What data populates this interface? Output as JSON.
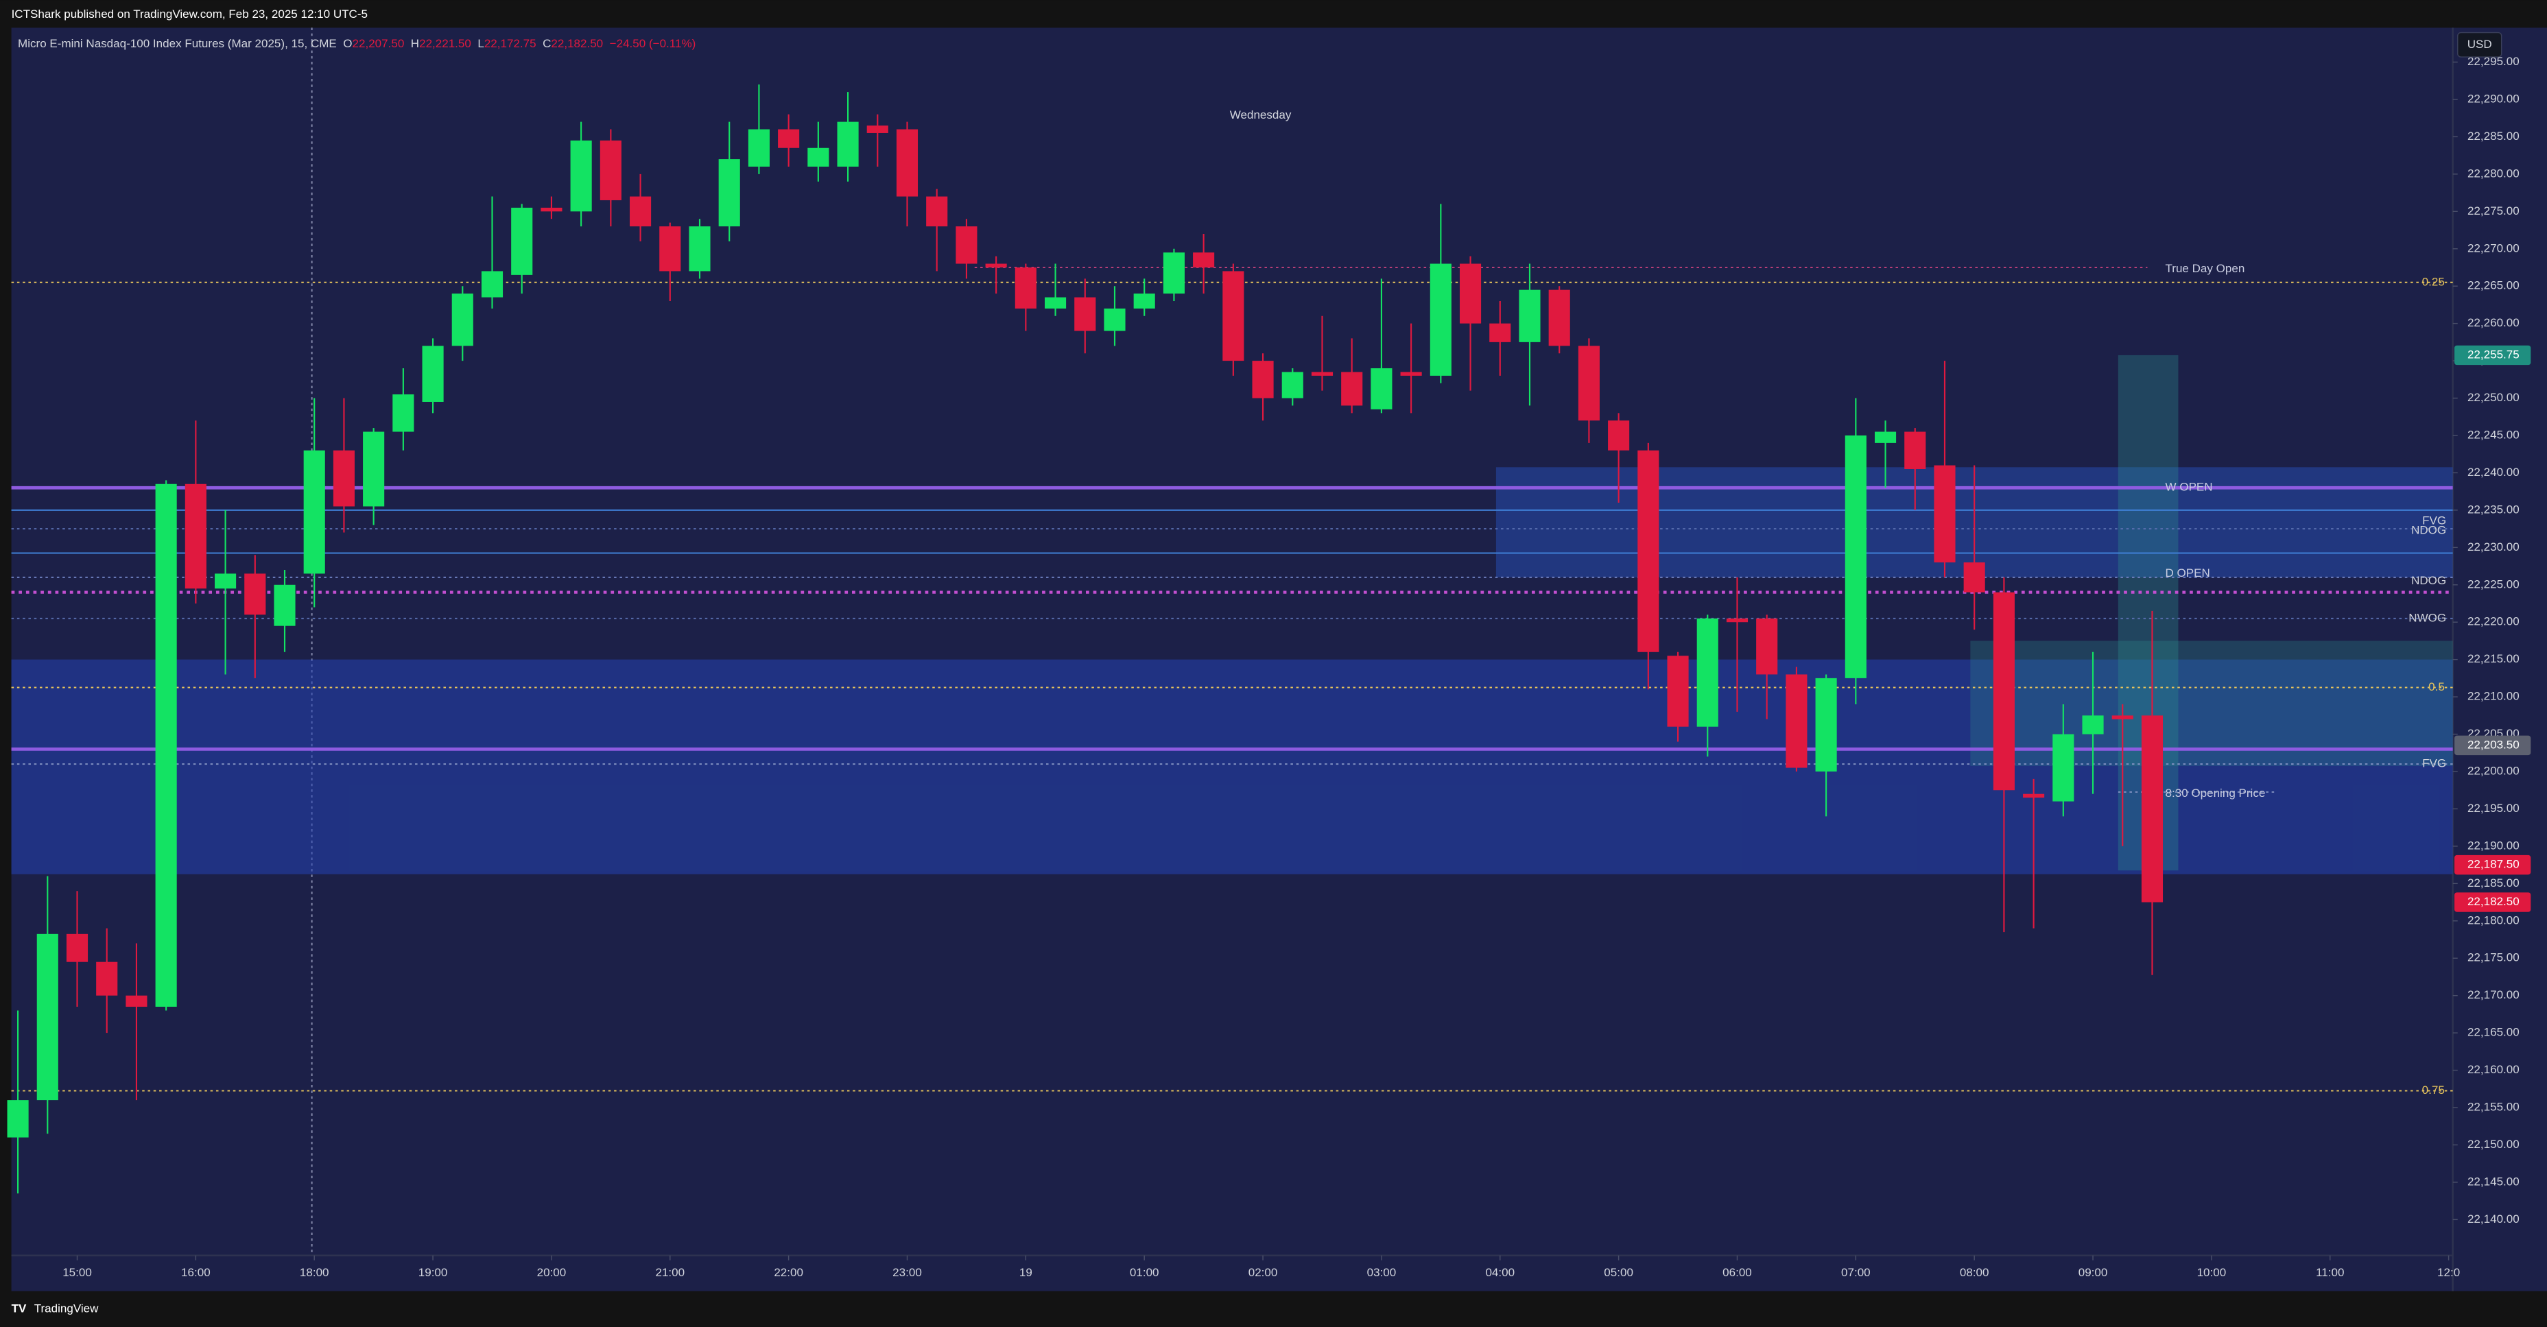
{
  "header": "ICTShark published on TradingView.com, Feb 23, 2025 12:10 UTC-5",
  "footer": "TradingView",
  "currency": "USD",
  "chart_data": {
    "type": "candlestick",
    "title": "Micro E-mini Nasdaq-100 Index Futures (Mar 2025), 15, CME",
    "legend": [
      {
        "key": "O",
        "text": "22,207.50"
      },
      {
        "key": "H",
        "text": "22,221.50"
      },
      {
        "key": "L",
        "text": "22,172.75"
      },
      {
        "key": "C",
        "text": "22,182.50"
      }
    ],
    "change": "−24.50 (−0.11%)",
    "day_label": "Wednesday",
    "up_color": "#13e363",
    "down_color": "#e0193f",
    "open": [
      22151,
      22156,
      22178.25,
      22174.5,
      22170,
      22168.5,
      22238.5,
      22224.5,
      22226.5,
      22219.5,
      22226.5,
      22243,
      22235.5,
      22245.5,
      22249.5,
      22257,
      22263.5,
      22266.5,
      22275.5,
      22275,
      22284.5,
      22277,
      22273,
      22267,
      22273,
      22281,
      22286,
      22281,
      22281,
      22286.5,
      22286,
      22277,
      22273,
      22268,
      22267.5,
      22262,
      22263.5,
      22259,
      22262,
      22264,
      22269.5,
      22267,
      22255,
      22250,
      22253.5,
      22253.5,
      22248.5,
      22253.5,
      22253,
      22268,
      22260,
      22257.5,
      22264.5,
      22257,
      22247,
      22243,
      22215.5,
      22206,
      22220.5,
      22220.5,
      22213,
      22200,
      22212.5,
      22244,
      22245.5,
      22241,
      22228,
      22224,
      22197,
      22196,
      22205,
      22207.5,
      22207.5
    ],
    "high": [
      22168,
      22186,
      22184,
      22179,
      22177,
      22239,
      22247,
      22235,
      22229,
      22227,
      22250,
      22250,
      22246,
      22254,
      22258,
      22265,
      22277,
      22276,
      22277,
      22287,
      22286,
      22280,
      22273.5,
      22274,
      22287,
      22292,
      22288,
      22287,
      22291,
      22288,
      22287,
      22278,
      22274,
      22269,
      22268,
      22268,
      22266,
      22265,
      22266,
      22270,
      22272,
      22268,
      22256,
      22254,
      22261,
      22258,
      22266,
      22260,
      22276,
      22269,
      22263,
      22268,
      22265,
      22258,
      22248,
      22244,
      22216,
      22221,
      22226,
      22221,
      22214,
      22213,
      22250,
      22247,
      22246,
      22255,
      22241,
      22226,
      22199,
      22209,
      22216,
      22209,
      22221.5
    ],
    "low": [
      22143.5,
      22151.5,
      22168.5,
      22165,
      22156,
      22168,
      22222.5,
      22213,
      22212.5,
      22216,
      22222,
      22232,
      22233,
      22243,
      22248,
      22255,
      22262,
      22264,
      22274,
      22273,
      22273,
      22271,
      22263,
      22266,
      22271,
      22280,
      22281,
      22279,
      22279,
      22281,
      22273,
      22267,
      22266,
      22264,
      22259,
      22261,
      22256,
      22257,
      22261,
      22263,
      22264,
      22253,
      22247,
      22249,
      22251,
      22248,
      22248,
      22248,
      22252,
      22251,
      22253,
      22249,
      22256,
      22244,
      22236,
      22211,
      22204,
      22202,
      22208,
      22207,
      22200,
      22194,
      22209,
      22238,
      22235,
      22226,
      22219,
      22178.5,
      22179,
      22194,
      22197,
      22190,
      22172.75
    ],
    "close": [
      22156,
      22178.25,
      22174.5,
      22170,
      22168.5,
      22238.5,
      22224.5,
      22226.5,
      22221,
      22225,
      22243,
      22235.5,
      22245.5,
      22250.5,
      22257,
      22264,
      22267,
      22275.5,
      22275,
      22284.5,
      22276.5,
      22273,
      22267,
      22273,
      22282,
      22286,
      22283.5,
      22283.5,
      22287,
      22285.5,
      22277,
      22273,
      22268,
      22267.5,
      22262,
      22263.5,
      22259,
      22262,
      22264,
      22269.5,
      22267.5,
      22255,
      22250,
      22253.5,
      22253,
      22249,
      22254,
      22253,
      22268,
      22260,
      22257.5,
      22264.5,
      22257,
      22247,
      22243,
      22216,
      22206,
      22220.5,
      22220,
      22213,
      22200.5,
      22212.5,
      22245,
      22245.5,
      22240.5,
      22228,
      22224,
      22197.5,
      22196.5,
      22205,
      22207.5,
      22207,
      22182.5
    ],
    "xlim": [
      -0.22,
      82.14
    ],
    "xticks": [
      {
        "value": 2,
        "label": "15:00"
      },
      {
        "value": 6,
        "label": "16:00"
      },
      {
        "value": 10,
        "label": "18:00"
      },
      {
        "value": 14,
        "label": "19:00"
      },
      {
        "value": 18,
        "label": "20:00"
      },
      {
        "value": 22,
        "label": "21:00"
      },
      {
        "value": 26,
        "label": "22:00"
      },
      {
        "value": 30,
        "label": "23:00"
      },
      {
        "value": 34,
        "label": "19"
      },
      {
        "value": 38,
        "label": "01:00"
      },
      {
        "value": 42,
        "label": "02:00"
      },
      {
        "value": 46,
        "label": "03:00"
      },
      {
        "value": 50,
        "label": "04:00"
      },
      {
        "value": 54,
        "label": "05:00"
      },
      {
        "value": 58,
        "label": "06:00"
      },
      {
        "value": 62,
        "label": "07:00"
      },
      {
        "value": 66,
        "label": "08:00"
      },
      {
        "value": 70,
        "label": "09:00"
      },
      {
        "value": 74,
        "label": "10:00"
      },
      {
        "value": 78,
        "label": "11:00"
      },
      {
        "value": 82,
        "label": "12:0"
      }
    ],
    "ylim": [
      22135.2,
      22299.6
    ],
    "yticks": [
      {
        "value": 22140,
        "label": "22,140.00"
      },
      {
        "value": 22145,
        "label": "22,145.00"
      },
      {
        "value": 22150,
        "label": "22,150.00"
      },
      {
        "value": 22155,
        "label": "22,155.00"
      },
      {
        "value": 22160,
        "label": "22,160.00"
      },
      {
        "value": 22165,
        "label": "22,165.00"
      },
      {
        "value": 22170,
        "label": "22,170.00"
      },
      {
        "value": 22175,
        "label": "22,175.00"
      },
      {
        "value": 22180,
        "label": "22,180.00"
      },
      {
        "value": 22185,
        "label": "22,185.00"
      },
      {
        "value": 22190,
        "label": "22,190.00"
      },
      {
        "value": 22195,
        "label": "22,195.00"
      },
      {
        "value": 22200,
        "label": "22,200.00"
      },
      {
        "value": 22205,
        "label": "22,205.00"
      },
      {
        "value": 22210,
        "label": "22,210.00"
      },
      {
        "value": 22215,
        "label": "22,215.00"
      },
      {
        "value": 22220,
        "label": "22,220.00"
      },
      {
        "value": 22225,
        "label": "22,225.00"
      },
      {
        "value": 22230,
        "label": "22,230.00"
      },
      {
        "value": 22235,
        "label": "22,235.00"
      },
      {
        "value": 22240,
        "label": "22,240.00"
      },
      {
        "value": 22245,
        "label": "22,245.00"
      },
      {
        "value": 22250,
        "label": "22,250.00"
      },
      {
        "value": 22255,
        "label": "22,255.00"
      },
      {
        "value": 22260,
        "label": "22,260.00"
      },
      {
        "value": 22265,
        "label": "22,265.00"
      },
      {
        "value": 22270,
        "label": "22,270.00"
      },
      {
        "value": 22275,
        "label": "22,275.00"
      },
      {
        "value": 22280,
        "label": "22,280.00"
      },
      {
        "value": 22285,
        "label": "22,285.00"
      },
      {
        "value": 22290,
        "label": "22,290.00"
      },
      {
        "value": 22295,
        "label": "22,295.00"
      }
    ],
    "zones": [
      {
        "top": 22215,
        "bottom": 22186.25,
        "color": "rgba(36,66,178,0.55)"
      },
      {
        "top": 22240.75,
        "bottom": 22226,
        "color": "rgba(40,84,196,0.45)"
      },
      {
        "top": 22255.75,
        "bottom": 22186.75,
        "color": "rgba(44,140,140,0.35)"
      },
      {
        "top": 22217.5,
        "bottom": 22200.75,
        "color": "rgba(44,140,140,0.3)"
      }
    ],
    "hlines": [
      {
        "value": 22265.5,
        "color": "#e6c35c",
        "style": "dotted",
        "label": "0.25"
      },
      {
        "value": 22267.5,
        "color": "#c2407a",
        "style": "dotted"
      },
      {
        "value": 22238,
        "color": "#8e5be0",
        "style": "bold"
      },
      {
        "value": 22235,
        "color": "#3f7fd6",
        "style": "solid"
      },
      {
        "value": 22232.5,
        "color": "#5a6fb0",
        "style": "dotted"
      },
      {
        "value": 22229.25,
        "color": "#3f7fd6",
        "style": "solid"
      },
      {
        "value": 22226,
        "color": "#6f7fc0",
        "style": "dotted"
      },
      {
        "value": 22224,
        "color": "#c24fd0",
        "style": "bold-dotted"
      },
      {
        "value": 22220.5,
        "color": "#5a6fb0",
        "style": "dotted"
      },
      {
        "value": 22211.25,
        "color": "#e6c35c",
        "style": "dotted",
        "label": "0.5"
      },
      {
        "value": 22203,
        "color": "#8e5be0",
        "style": "bold"
      },
      {
        "value": 22201,
        "color": "#8090c0",
        "style": "dotted"
      },
      {
        "value": 22197.25,
        "color": "#8090c0",
        "style": "dotted"
      },
      {
        "value": 22157.25,
        "color": "#e6c35c",
        "style": "dotted",
        "label": "0.75"
      }
    ],
    "annotations": [
      {
        "text": "True Day Open",
        "value": 22267.25,
        "anchor": "left"
      },
      {
        "text": "W OPEN",
        "value": 22238,
        "anchor": "left"
      },
      {
        "text": "FVG",
        "value": 22233.5,
        "anchor": "right"
      },
      {
        "text": "NDOG",
        "value": 22232.25,
        "anchor": "right"
      },
      {
        "text": "D OPEN",
        "value": 22226.5,
        "anchor": "left"
      },
      {
        "text": "NDOG",
        "value": 22225.5,
        "anchor": "right"
      },
      {
        "text": "NWOG",
        "value": 22220.5,
        "anchor": "right"
      },
      {
        "text": "FVG",
        "value": 22201,
        "anchor": "right"
      },
      {
        "text": "8:30 Opening Price",
        "value": 22197,
        "anchor": "left"
      }
    ],
    "price_tags": [
      {
        "value": 22255.75,
        "label": "22,255.75",
        "color": "#1f8f80"
      },
      {
        "value": 22203.5,
        "label": "22,203.50",
        "color": "#5d6170"
      },
      {
        "value": 22187.5,
        "label": "22,187.50",
        "color": "#e0193f"
      },
      {
        "value": 22182.5,
        "label": "22,182.50",
        "color": "#e0193f"
      }
    ]
  }
}
